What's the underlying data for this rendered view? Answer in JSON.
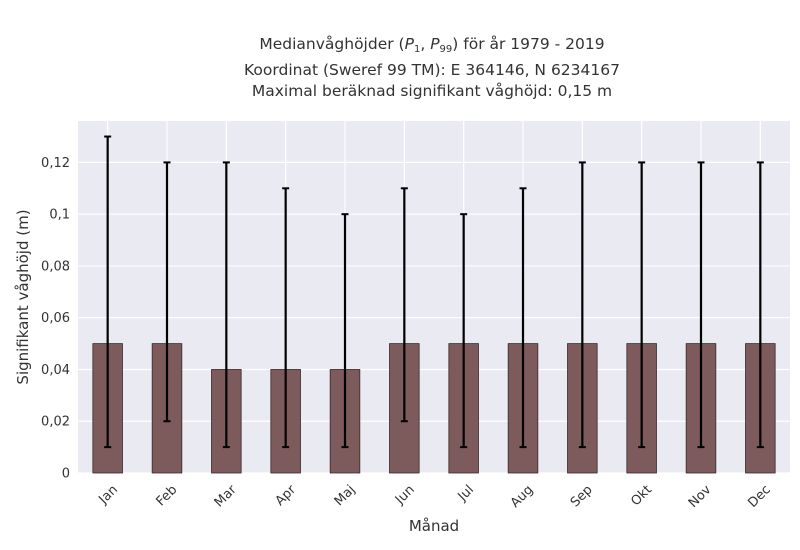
{
  "title": {
    "line1_prefix": "Medianvåghöjder (",
    "p1_base": "P",
    "p1_sub": "1",
    "separator": ", ",
    "p99_base": "P",
    "p99_sub": "99",
    "line1_suffix": ") för år 1979 - 2019",
    "line2": "Koordinat (Sweref 99 TM): E 364146, N 6234167",
    "line3": "Maximal beräknad signifikant våghöjd: 0,15 m"
  },
  "chart_data": {
    "type": "bar",
    "categories": [
      "Jan",
      "Feb",
      "Mar",
      "Apr",
      "Maj",
      "Jun",
      "Jul",
      "Aug",
      "Sep",
      "Okt",
      "Nov",
      "Dec"
    ],
    "values": [
      0.05,
      0.05,
      0.04,
      0.04,
      0.04,
      0.05,
      0.05,
      0.05,
      0.05,
      0.05,
      0.05,
      0.05
    ],
    "error_low": [
      0.01,
      0.02,
      0.01,
      0.01,
      0.01,
      0.02,
      0.01,
      0.01,
      0.01,
      0.01,
      0.01,
      0.01
    ],
    "error_high": [
      0.13,
      0.12,
      0.12,
      0.11,
      0.1,
      0.11,
      0.1,
      0.11,
      0.12,
      0.12,
      0.12,
      0.12
    ],
    "xlabel": "Månad",
    "ylabel": "Signifikant våghöjd (m)",
    "ylim": [
      0,
      0.136
    ],
    "yticks": [
      0,
      0.02,
      0.04,
      0.06,
      0.08,
      0.1,
      0.12
    ],
    "ytick_labels": [
      "0",
      "0,02",
      "0,04",
      "0,06",
      "0,08",
      "0,1",
      "0,12"
    ],
    "grid": true,
    "colors": {
      "bar": "#7d5a5b",
      "bar_edge": "#3a2a2a",
      "error_bar": "#000000",
      "plot_background": "#eaeaf2",
      "grid": "#ffffff"
    }
  }
}
